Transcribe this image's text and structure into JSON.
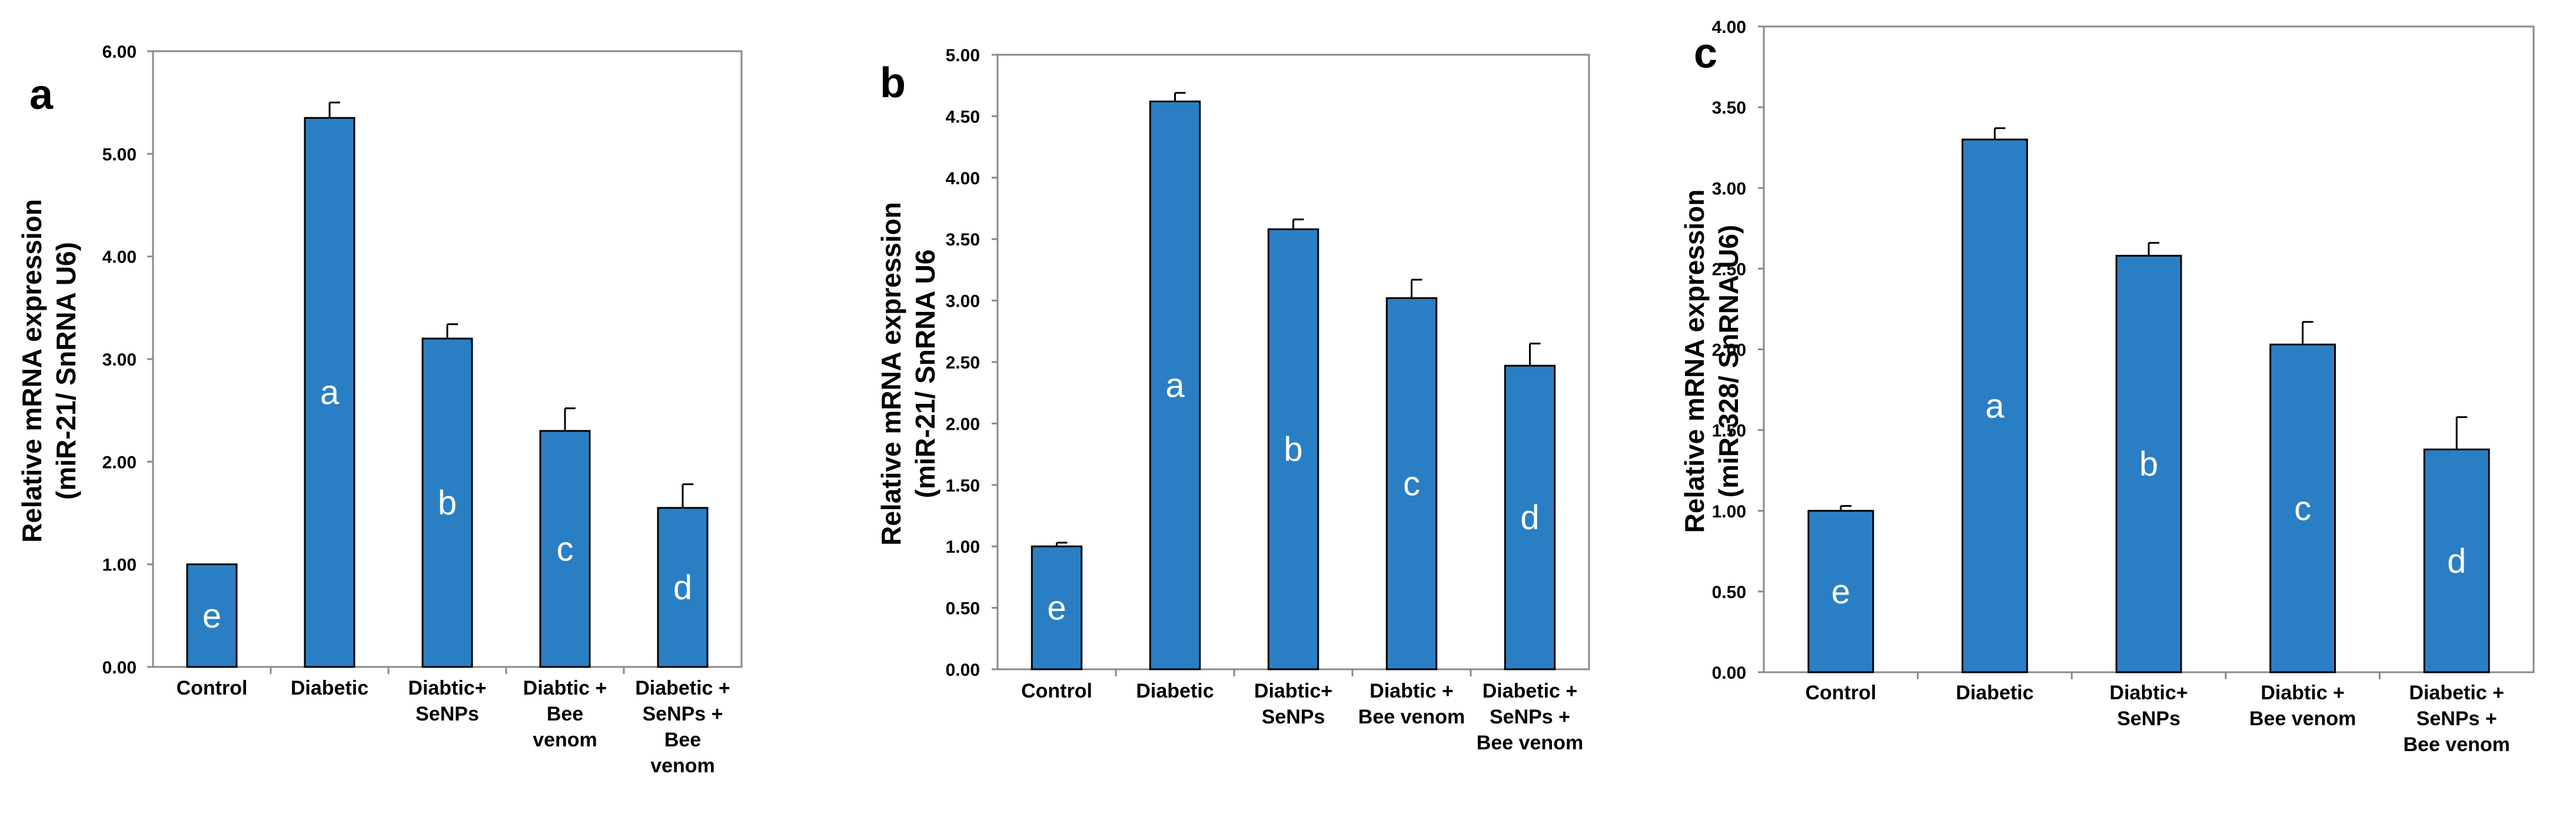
{
  "chart_data": [
    {
      "type": "bar",
      "panel": "a",
      "ylabel_lines": [
        "Relative mRNA expression",
        "(miR-21/ SnRNA U6)"
      ],
      "ylim": [
        0,
        6
      ],
      "yticks": [
        "0.00",
        "1.00",
        "2.00",
        "3.00",
        "4.00",
        "5.00",
        "6.00"
      ],
      "bar_color": "#2a7fc4",
      "categories": [
        [
          "Control"
        ],
        [
          "Diabetic"
        ],
        [
          "Diabtic+",
          "SeNPs"
        ],
        [
          "Diabtic +",
          "Bee",
          "venom"
        ],
        [
          "Diabetic +",
          "SeNPs +",
          "Bee",
          "venom"
        ]
      ],
      "values": [
        1.0,
        5.35,
        3.2,
        2.3,
        1.55
      ],
      "errors": [
        0.0,
        0.15,
        0.14,
        0.22,
        0.23
      ],
      "group_letters": [
        "e",
        "a",
        "b",
        "c",
        "d"
      ]
    },
    {
      "type": "bar",
      "panel": "b",
      "ylabel_lines": [
        "Relative mRNA expression",
        "(miR-21/ SnRNA U6"
      ],
      "ylim": [
        0,
        5
      ],
      "yticks": [
        "0.00",
        "0.50",
        "1.00",
        "1.50",
        "2.00",
        "2.50",
        "3.00",
        "3.50",
        "4.00",
        "4.50",
        "5.00"
      ],
      "bar_color": "#2a7fc4",
      "categories": [
        [
          "Control"
        ],
        [
          "Diabetic"
        ],
        [
          "Diabtic+",
          "SeNPs"
        ],
        [
          "Diabtic +",
          "Bee venom"
        ],
        [
          "Diabetic +",
          "SeNPs +",
          "Bee venom"
        ]
      ],
      "values": [
        1.0,
        4.62,
        3.58,
        3.02,
        2.47
      ],
      "errors": [
        0.03,
        0.07,
        0.08,
        0.15,
        0.18
      ],
      "group_letters": [
        "e",
        "a",
        "b",
        "c",
        "d"
      ]
    },
    {
      "type": "bar",
      "panel": "c",
      "ylabel_lines": [
        "Relative mRNA expression",
        "(miR-328/ SnRNA U6)"
      ],
      "ylim": [
        0,
        4
      ],
      "yticks": [
        "0.00",
        "0.50",
        "1.00",
        "1.50",
        "2.00",
        "2.50",
        "3.00",
        "3.50",
        "4.00"
      ],
      "bar_color": "#2a7fc4",
      "categories": [
        [
          "Control"
        ],
        [
          "Diabetic"
        ],
        [
          "Diabtic+",
          "SeNPs"
        ],
        [
          "Diabtic +",
          "Bee venom"
        ],
        [
          "Diabetic +",
          "SeNPs +",
          "Bee venom"
        ]
      ],
      "values": [
        1.0,
        3.3,
        2.58,
        2.03,
        1.38
      ],
      "errors": [
        0.03,
        0.07,
        0.08,
        0.14,
        0.2
      ],
      "group_letters": [
        "e",
        "a",
        "b",
        "c",
        "d"
      ]
    }
  ]
}
